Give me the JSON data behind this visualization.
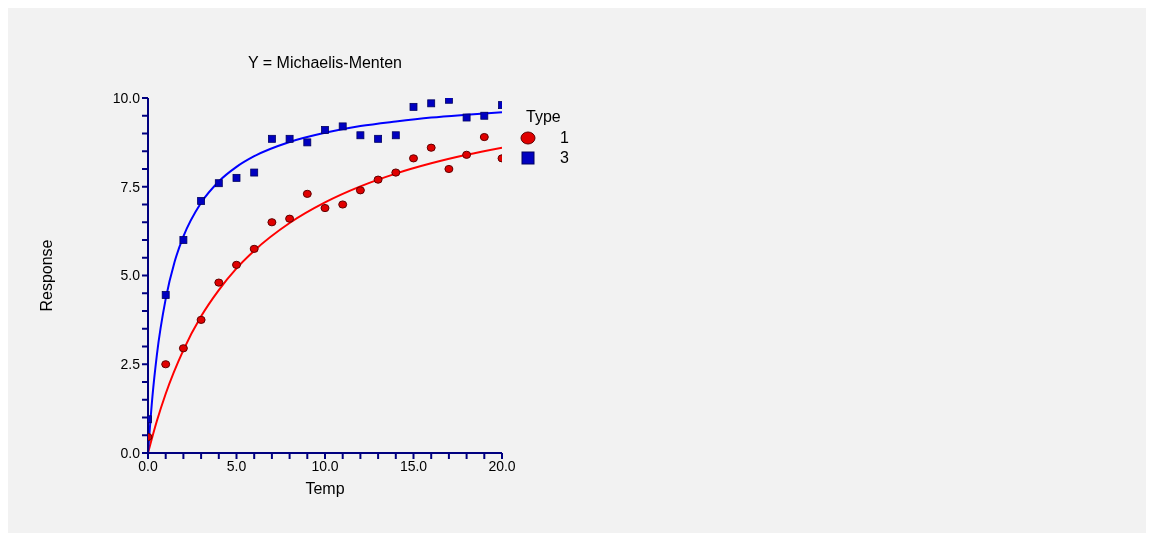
{
  "chart_data": {
    "type": "scatter",
    "title": "Y = Michaelis-Menten",
    "xlabel": "Temp",
    "ylabel": "Response",
    "legend_title": "Type",
    "legend": "top right",
    "grid": false,
    "x": [
      0,
      1,
      2,
      3,
      4,
      5,
      6,
      7,
      8,
      9,
      10,
      11,
      12,
      13,
      14,
      15,
      16,
      17,
      18,
      19,
      20
    ],
    "xlim": [
      0,
      20
    ],
    "ylim": [
      0,
      10
    ],
    "xticks": [
      {
        "value": 0,
        "label": "0.0"
      },
      {
        "value": 1,
        "label": null
      },
      {
        "value": 2,
        "label": null
      },
      {
        "value": 3,
        "label": null
      },
      {
        "value": 4,
        "label": null
      },
      {
        "value": 5,
        "label": "5.0"
      },
      {
        "value": 6,
        "label": null
      },
      {
        "value": 7,
        "label": null
      },
      {
        "value": 8,
        "label": null
      },
      {
        "value": 9,
        "label": null
      },
      {
        "value": 10,
        "label": "10.0"
      },
      {
        "value": 11,
        "label": null
      },
      {
        "value": 12,
        "label": null
      },
      {
        "value": 13,
        "label": null
      },
      {
        "value": 14,
        "label": null
      },
      {
        "value": 15,
        "label": "15.0"
      },
      {
        "value": 16,
        "label": null
      },
      {
        "value": 17,
        "label": null
      },
      {
        "value": 18,
        "label": null
      },
      {
        "value": 19,
        "label": null
      },
      {
        "value": 20,
        "label": "20.0"
      }
    ],
    "yticks": [
      {
        "value": 0,
        "label": "0.0"
      },
      {
        "value": 0.5,
        "label": null
      },
      {
        "value": 1,
        "label": null
      },
      {
        "value": 1.5,
        "label": null
      },
      {
        "value": 2,
        "label": null
      },
      {
        "value": 2.5,
        "label": "2.5"
      },
      {
        "value": 3,
        "label": null
      },
      {
        "value": 3.5,
        "label": null
      },
      {
        "value": 4,
        "label": null
      },
      {
        "value": 4.5,
        "label": null
      },
      {
        "value": 5,
        "label": "5.0"
      },
      {
        "value": 5.5,
        "label": null
      },
      {
        "value": 6,
        "label": null
      },
      {
        "value": 6.5,
        "label": null
      },
      {
        "value": 7,
        "label": null
      },
      {
        "value": 7.5,
        "label": "7.5"
      },
      {
        "value": 8,
        "label": null
      },
      {
        "value": 8.5,
        "label": null
      },
      {
        "value": 9,
        "label": null
      },
      {
        "value": 9.5,
        "label": null
      },
      {
        "value": 10,
        "label": "10.0"
      }
    ],
    "series": [
      {
        "type": "line",
        "color": "#ff0000",
        "x": [
          0,
          0.5,
          1,
          2,
          3,
          4,
          5,
          6,
          8,
          10,
          12,
          14,
          16,
          18,
          20
        ],
        "values": [
          0,
          0.9,
          1.67,
          2.9,
          3.85,
          4.59,
          5.2,
          5.7,
          6.48,
          7.06,
          7.51,
          7.87,
          8.16,
          8.4,
          8.6
        ]
      },
      {
        "type": "line",
        "color": "#0000ff",
        "x": [
          0,
          0.25,
          0.5,
          1,
          1.5,
          2,
          3,
          4,
          5,
          6,
          8,
          10,
          12,
          14,
          16,
          18,
          20
        ],
        "values": [
          0,
          1.59,
          2.76,
          4.34,
          5.38,
          6.1,
          7.05,
          7.65,
          8.06,
          8.36,
          8.76,
          9.02,
          9.21,
          9.34,
          9.45,
          9.53,
          9.6
        ]
      },
      {
        "name": "1",
        "marker": "circle",
        "color": "#e00000",
        "values": [
          0.45,
          2.5,
          2.95,
          3.75,
          4.8,
          5.3,
          5.75,
          6.5,
          6.6,
          7.3,
          6.9,
          7.0,
          7.4,
          7.7,
          7.9,
          8.3,
          8.6,
          8.0,
          8.4,
          8.9,
          8.3
        ]
      },
      {
        "name": "3",
        "marker": "square",
        "color": "#0000c0",
        "values": [
          0.95,
          4.45,
          6.0,
          7.1,
          7.6,
          7.75,
          7.9,
          8.85,
          8.85,
          8.75,
          9.1,
          9.2,
          8.95,
          8.85,
          8.95,
          9.75,
          9.85,
          9.95,
          9.45,
          9.5,
          9.8
        ]
      }
    ]
  }
}
